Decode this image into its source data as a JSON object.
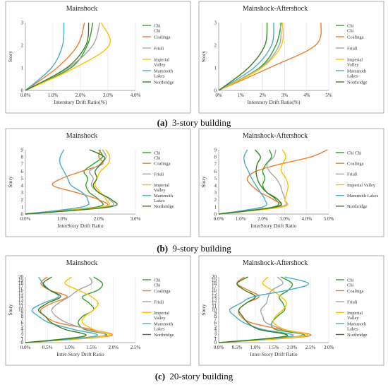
{
  "colors": {
    "Chi Chi": "#2ca02c",
    "Coalinga": "#ed7d31",
    "Friuli": "#a5a5a5",
    "Imperial Valley": "#ffc000",
    "Mammoth Lakes": "#4bacc6",
    "Northridge": "#3a7d22"
  },
  "captions": [
    {
      "letter": "(a)",
      "text": "3-story building"
    },
    {
      "letter": "(b)",
      "text": "9-story building"
    },
    {
      "letter": "(c)",
      "text": "20-story building"
    }
  ],
  "chart_data": [
    {
      "type": "line",
      "title": "Mainshock",
      "xlabel": "Interstory Drift Ratio(%)",
      "ylabel": "Story",
      "xlim": [
        0,
        4
      ],
      "ylim": [
        0,
        3
      ],
      "xticks": [
        "0.0%",
        "1.0%",
        "2.0%",
        "3.0%",
        "4.0%"
      ],
      "yticks": [
        "0",
        "1",
        "2",
        "3"
      ],
      "legend": "right",
      "y": [
        0,
        1,
        2,
        3
      ],
      "series": [
        {
          "name": "Chi Chi",
          "x": [
            0,
            1.65,
            2.25,
            2.45
          ]
        },
        {
          "name": "Coalinga",
          "x": [
            0,
            1.15,
            1.9,
            2.15
          ]
        },
        {
          "name": "Friuli",
          "x": [
            0,
            1.55,
            2.45,
            2.7
          ]
        },
        {
          "name": "Imperial Valley",
          "x": [
            0,
            1.8,
            3.05,
            2.75
          ]
        },
        {
          "name": "Mammoth Lakes",
          "x": [
            0,
            0.95,
            1.35,
            1.4
          ]
        },
        {
          "name": "Northridge",
          "x": [
            0,
            1.5,
            2.2,
            2.3
          ]
        }
      ]
    },
    {
      "type": "line",
      "title": "Mainshock-Aftershock",
      "xlabel": "Interstory Drift Ratio(%)",
      "ylabel": "Story",
      "xlim": [
        0,
        5
      ],
      "ylim": [
        0,
        3
      ],
      "xticks": [
        "0%",
        "1%",
        "2%",
        "3%",
        "4%",
        "5%"
      ],
      "yticks": [
        "0",
        "1",
        "2",
        "3"
      ],
      "legend": "right",
      "y": [
        0,
        1,
        2,
        3
      ],
      "series": [
        {
          "name": "Chi Chi",
          "x": [
            0,
            1.85,
            2.6,
            2.85
          ]
        },
        {
          "name": "Coalinga",
          "x": [
            0,
            2.3,
            4.4,
            4.65
          ]
        },
        {
          "name": "Friuli",
          "x": [
            0,
            1.9,
            2.75,
            2.8
          ]
        },
        {
          "name": "Imperial Valley",
          "x": [
            0,
            1.95,
            2.85,
            2.9
          ]
        },
        {
          "name": "Mammoth Lakes",
          "x": [
            0,
            1.6,
            2.4,
            2.5
          ]
        },
        {
          "name": "Northridge",
          "x": [
            0,
            1.35,
            2.1,
            2.2
          ]
        }
      ]
    },
    {
      "type": "line",
      "title": "Mainshock",
      "xlabel": "InterStory Drift Ratio",
      "ylabel": "Story",
      "xlim": [
        0,
        3
      ],
      "ylim": [
        0,
        9
      ],
      "xticks": [
        "0.0%",
        "1.0%",
        "2.0%",
        "3.0%"
      ],
      "yticks": [
        "0",
        "1",
        "2",
        "3",
        "4",
        "5",
        "6",
        "7",
        "8",
        "9"
      ],
      "legend": "right",
      "y": [
        0,
        1,
        2,
        3,
        4,
        5,
        6,
        7,
        8,
        9
      ],
      "series": [
        {
          "name": "Chi Chi",
          "x": [
            0,
            1.95,
            2.0,
            1.75,
            1.65,
            1.7,
            1.6,
            1.85,
            2.1,
            2.0
          ]
        },
        {
          "name": "Coalinga",
          "x": [
            0,
            2.1,
            2.0,
            1.4,
            0.75,
            1.0,
            1.55,
            2.1,
            2.0,
            2.05
          ]
        },
        {
          "name": "Friuli",
          "x": [
            0,
            2.2,
            2.3,
            2.0,
            1.8,
            1.85,
            1.75,
            2.05,
            2.2,
            2.1
          ]
        },
        {
          "name": "Imperial Valley",
          "x": [
            0,
            2.1,
            2.2,
            2.05,
            1.9,
            1.95,
            2.05,
            2.25,
            2.3,
            2.2
          ]
        },
        {
          "name": "Mammoth Lakes",
          "x": [
            0,
            1.55,
            1.7,
            1.55,
            1.25,
            1.15,
            1.05,
            0.95,
            0.95,
            1.05
          ]
        },
        {
          "name": "Northridge",
          "x": [
            0,
            2.3,
            2.35,
            2.0,
            1.85,
            1.95,
            1.9,
            2.05,
            2.15,
            1.75
          ]
        }
      ]
    },
    {
      "type": "line",
      "title": "Mainshock-Aftershock",
      "xlabel": "InterStory Drift Ratio",
      "ylabel": "Story",
      "xlim": [
        0,
        5
      ],
      "ylim": [
        0,
        9
      ],
      "xticks": [
        "0.0%",
        "1.0%",
        "2.0%",
        "3.0%",
        "4.0%",
        "5.0%"
      ],
      "yticks": [
        "0",
        "1",
        "2",
        "3",
        "4",
        "5",
        "6",
        "7",
        "8",
        "9"
      ],
      "legend": "right",
      "y": [
        0,
        1,
        2,
        3,
        4,
        5,
        6,
        7,
        8,
        9
      ],
      "series": [
        {
          "name": "Chi Chi",
          "x": [
            0,
            2.5,
            2.6,
            2.2,
            2.0,
            2.1,
            2.0,
            2.15,
            2.4,
            2.3
          ]
        },
        {
          "name": "Coalinga",
          "x": [
            0,
            2.7,
            2.5,
            1.9,
            1.5,
            1.3,
            1.7,
            2.8,
            4.2,
            4.95
          ]
        },
        {
          "name": "Friuli",
          "x": [
            0,
            2.8,
            3.0,
            2.9,
            2.8,
            2.6,
            2.3,
            2.2,
            2.5,
            2.6
          ]
        },
        {
          "name": "Imperial Valley",
          "x": [
            0,
            2.9,
            3.0,
            3.1,
            3.15,
            3.05,
            2.85,
            2.9,
            3.05,
            2.9
          ]
        },
        {
          "name": "Mammoth Lakes",
          "x": [
            0,
            2.0,
            2.1,
            1.9,
            1.7,
            1.5,
            1.35,
            1.2,
            1.15,
            1.3
          ]
        },
        {
          "name": "Northridge",
          "x": [
            0,
            2.6,
            2.7,
            2.2,
            1.9,
            1.75,
            1.7,
            1.75,
            1.9,
            1.65
          ]
        }
      ]
    },
    {
      "type": "line",
      "title": "Mainshock",
      "xlabel": "Inter-Story Drift Ratio",
      "ylabel": "Story",
      "xlim": [
        0,
        2.5
      ],
      "ylim": [
        0,
        20
      ],
      "xticks": [
        "0.0%",
        "0.5%",
        "1.0%",
        "1.5%",
        "2.0%",
        "2.5%"
      ],
      "yticks": [
        "0",
        "1",
        "2",
        "3",
        "4",
        "5",
        "6",
        "7",
        "8",
        "9",
        "10",
        "11",
        "12",
        "13",
        "14",
        "15",
        "16",
        "17",
        "18",
        "19",
        "20"
      ],
      "legend": "right",
      "y": [
        0,
        2,
        4,
        6,
        8,
        10,
        12,
        14,
        16,
        18,
        20
      ],
      "series": [
        {
          "name": "Chi Chi",
          "x": [
            0,
            1.8,
            1.35,
            1.2,
            1.3,
            1.55,
            1.45,
            1.3,
            1.65,
            1.75,
            1.55
          ]
        },
        {
          "name": "Coalinga",
          "x": [
            0,
            1.9,
            1.5,
            0.75,
            0.45,
            0.35,
            0.6,
            0.95,
            0.55,
            0.35,
            0.5
          ]
        },
        {
          "name": "Friuli",
          "x": [
            0,
            1.75,
            1.4,
            0.95,
            0.7,
            0.6,
            0.75,
            1.0,
            1.2,
            1.5,
            1.45
          ]
        },
        {
          "name": "Imperial Valley",
          "x": [
            0,
            1.85,
            1.55,
            1.3,
            1.35,
            1.55,
            1.65,
            1.5,
            1.2,
            0.9,
            1.05
          ]
        },
        {
          "name": "Mammoth Lakes",
          "x": [
            0,
            1.6,
            1.1,
            0.55,
            0.3,
            0.15,
            0.4,
            0.75,
            0.55,
            0.4,
            0.3
          ]
        },
        {
          "name": "Northridge",
          "x": [
            0,
            1.35,
            0.9,
            0.6,
            0.45,
            0.3,
            0.5,
            0.8,
            0.55,
            0.4,
            0.6
          ]
        }
      ]
    },
    {
      "type": "line",
      "title": "Mainshock-Aftershock",
      "xlabel": "Inter-Story Drift Ratio",
      "ylabel": "Story",
      "xlim": [
        0,
        3
      ],
      "ylim": [
        0,
        20
      ],
      "xticks": [
        "0.0%",
        "0.5%",
        "1.0%",
        "1.5%",
        "2.0%",
        "2.5%",
        "3.0%"
      ],
      "yticks": [
        "0",
        "1",
        "2",
        "3",
        "4",
        "5",
        "6",
        "7",
        "8",
        "9",
        "10",
        "11",
        "12",
        "13",
        "14",
        "15",
        "16",
        "17",
        "18",
        "19",
        "20"
      ],
      "legend": "right",
      "y": [
        0,
        2,
        4,
        6,
        8,
        10,
        12,
        14,
        16,
        18,
        20
      ],
      "series": [
        {
          "name": "Chi Chi",
          "x": [
            0,
            2.3,
            1.55,
            1.45,
            1.6,
            1.8,
            1.75,
            1.65,
            1.9,
            2.0,
            1.7
          ]
        },
        {
          "name": "Coalinga",
          "x": [
            0,
            2.45,
            1.7,
            0.9,
            0.6,
            0.55,
            0.75,
            1.1,
            0.8,
            0.5,
            0.7
          ]
        },
        {
          "name": "Friuli",
          "x": [
            0,
            2.2,
            1.75,
            1.3,
            1.2,
            1.15,
            1.3,
            1.35,
            1.45,
            1.75,
            1.6
          ]
        },
        {
          "name": "Imperial Valley",
          "x": [
            0,
            2.35,
            1.8,
            1.5,
            1.55,
            1.75,
            1.85,
            1.7,
            1.45,
            1.2,
            1.35
          ]
        },
        {
          "name": "Mammoth Lakes",
          "x": [
            0,
            2.0,
            1.2,
            0.7,
            0.45,
            0.3,
            0.6,
            0.95,
            1.9,
            2.45,
            1.8
          ]
        },
        {
          "name": "Northridge",
          "x": [
            0,
            1.85,
            1.1,
            0.8,
            0.65,
            0.55,
            0.75,
            1.0,
            0.7,
            0.5,
            0.8
          ]
        }
      ]
    }
  ]
}
